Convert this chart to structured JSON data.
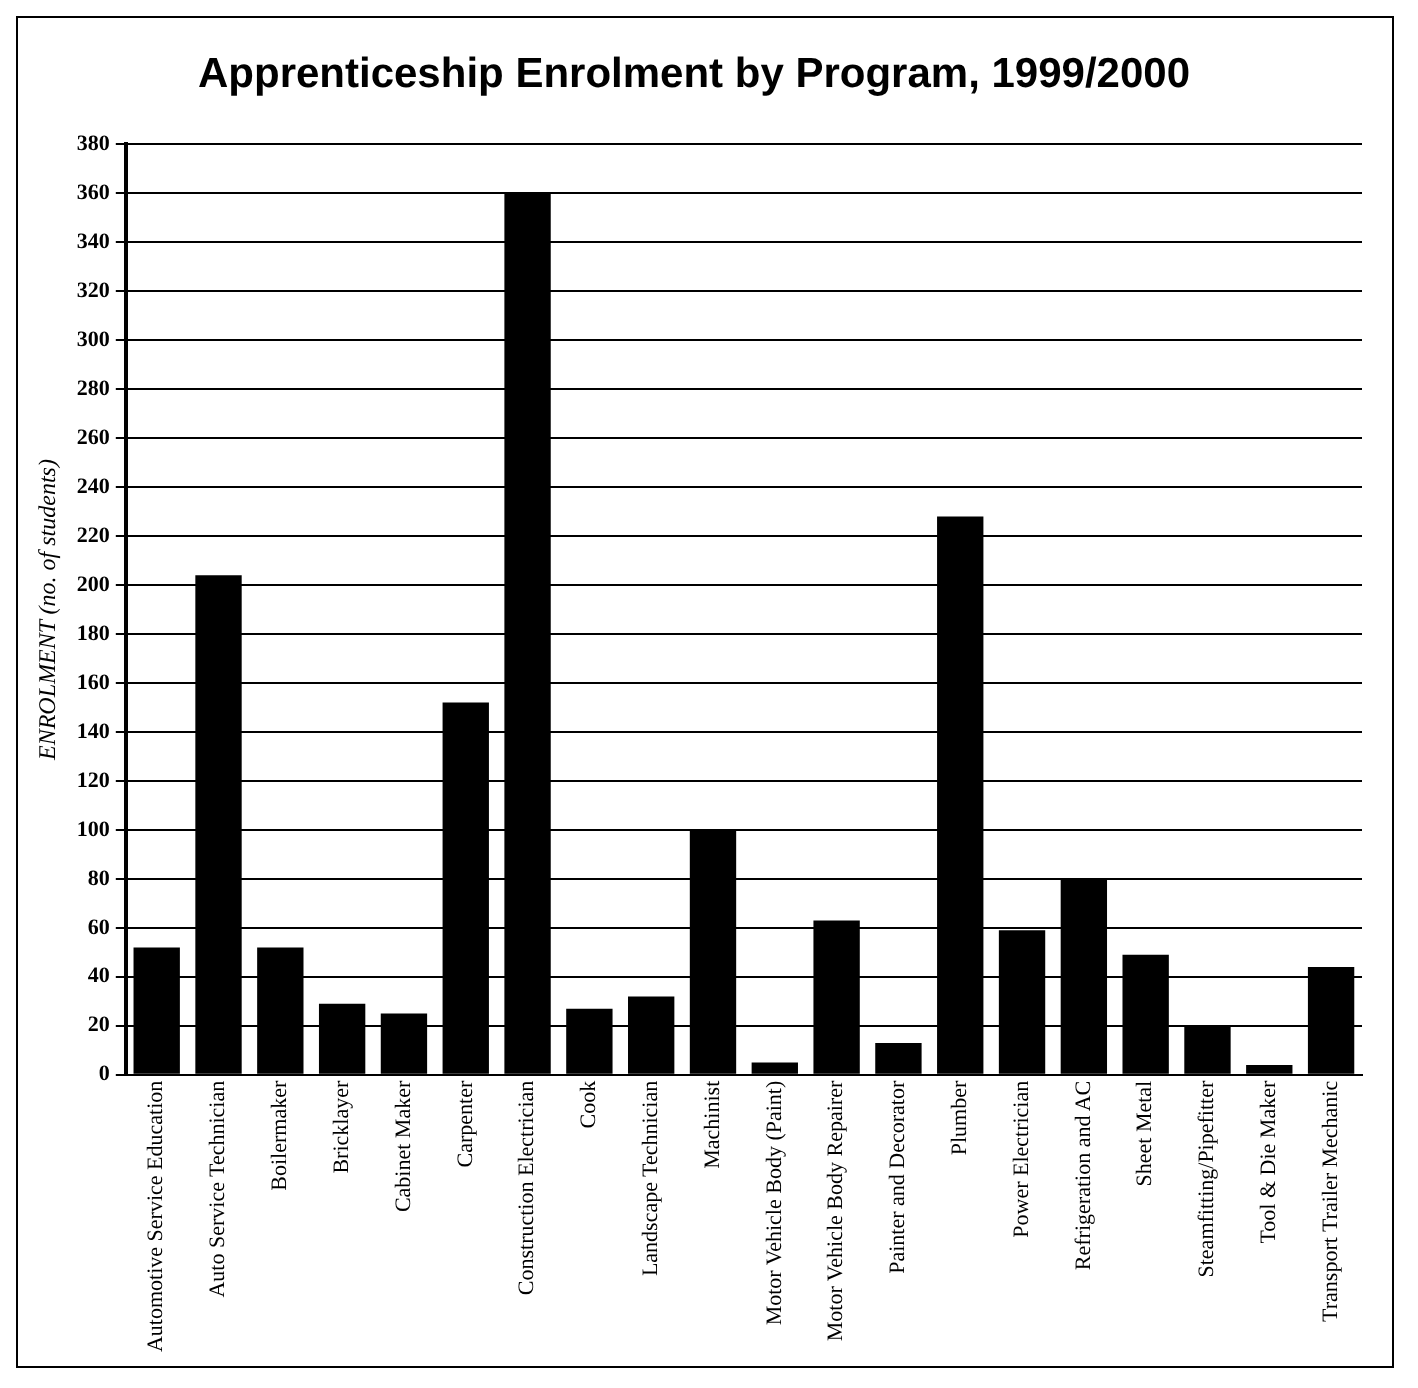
{
  "chart_data": {
    "type": "bar",
    "title": "Apprenticeship Enrolment by Program, 1999/2000",
    "ylabel": "ENROLMENT (no. of students)",
    "categories": [
      "Automotive Service Education",
      "Auto Service Technician",
      "Boilermaker",
      "Bricklayer",
      "Cabinet Maker",
      "Carpenter",
      "Construction Electrician",
      "Cook",
      "Landscape Technician",
      "Machinist",
      "Motor Vehicle Body (Paint)",
      "Motor Vehicle Body Repairer",
      "Painter and Decorator",
      "Plumber",
      "Power Electrician",
      "Refrigeration and AC",
      "Sheet Metal",
      "Steamfitting/Pipefitter",
      "Tool & Die Maker",
      "Transport Trailer Mechanic"
    ],
    "values": [
      52,
      204,
      52,
      29,
      25,
      152,
      360,
      27,
      32,
      100,
      5,
      63,
      13,
      228,
      59,
      80,
      49,
      20,
      4,
      44
    ],
    "color": "#000000",
    "ylim": [
      0,
      380
    ],
    "yticks": [
      0,
      20,
      40,
      60,
      80,
      100,
      120,
      140,
      160,
      180,
      200,
      220,
      240,
      260,
      280,
      300,
      320,
      340,
      360,
      380
    ],
    "grid": "y",
    "legend": false
  }
}
